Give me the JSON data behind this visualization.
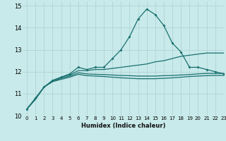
{
  "title": "",
  "xlabel": "Humidex (Indice chaleur)",
  "ylabel": "",
  "background_color": "#c8eaea",
  "grid_color": "#b0d0d0",
  "line_color": "#1a7070",
  "xlim": [
    -0.5,
    23
  ],
  "ylim": [
    10,
    15.2
  ],
  "yticks": [
    10,
    11,
    12,
    13,
    14,
    15
  ],
  "xticks": [
    0,
    1,
    2,
    3,
    4,
    5,
    6,
    7,
    8,
    9,
    10,
    11,
    12,
    13,
    14,
    15,
    16,
    17,
    18,
    19,
    20,
    21,
    22,
    23
  ],
  "x": [
    0,
    1,
    2,
    3,
    4,
    5,
    6,
    7,
    8,
    9,
    10,
    11,
    12,
    13,
    14,
    15,
    16,
    17,
    18,
    19,
    20,
    21,
    22,
    23
  ],
  "series1": [
    10.3,
    10.8,
    11.3,
    11.6,
    11.75,
    11.9,
    12.2,
    12.1,
    12.2,
    12.2,
    12.6,
    13.0,
    13.6,
    14.4,
    14.85,
    14.6,
    14.1,
    13.3,
    12.9,
    12.2,
    12.2,
    12.1,
    12.0,
    11.9
  ],
  "series2": [
    10.3,
    10.75,
    11.3,
    11.6,
    11.75,
    11.85,
    12.05,
    12.05,
    12.1,
    12.1,
    12.15,
    12.2,
    12.25,
    12.3,
    12.35,
    12.45,
    12.5,
    12.6,
    12.7,
    12.75,
    12.8,
    12.85,
    12.85,
    12.85
  ],
  "series3": [
    10.3,
    10.75,
    11.3,
    11.55,
    11.7,
    11.8,
    11.95,
    11.9,
    11.88,
    11.87,
    11.85,
    11.83,
    11.82,
    11.8,
    11.8,
    11.8,
    11.82,
    11.83,
    11.85,
    11.87,
    11.9,
    11.92,
    11.92,
    11.92
  ],
  "series4": [
    10.3,
    10.75,
    11.3,
    11.55,
    11.65,
    11.75,
    11.88,
    11.82,
    11.8,
    11.78,
    11.75,
    11.72,
    11.7,
    11.68,
    11.68,
    11.68,
    11.7,
    11.72,
    11.75,
    11.78,
    11.8,
    11.82,
    11.83,
    11.83
  ]
}
